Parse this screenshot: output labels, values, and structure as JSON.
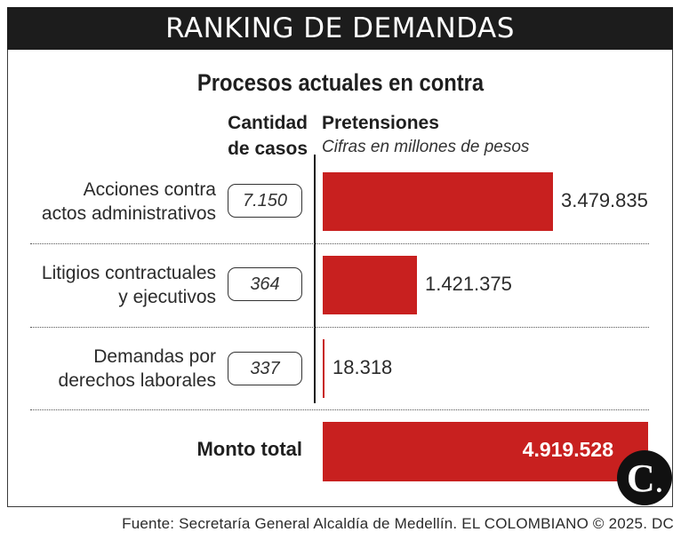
{
  "header": {
    "title": "RANKING DE DEMANDAS"
  },
  "subtitle": "Procesos actuales en contra",
  "columns": {
    "casos_line1": "Cantidad",
    "casos_line2": "de casos",
    "pretensiones": "Pretensiones",
    "pretensiones_sub": "Cifras en millones de pesos"
  },
  "rows": [
    {
      "label_line1": "Acciones contra",
      "label_line2": "actos administrativos",
      "casos": "7.150",
      "value_text": "3.479.835"
    },
    {
      "label_line1": "Litigios contractuales",
      "label_line2": "y ejecutivos",
      "casos": "364",
      "value_text": "1.421.375"
    },
    {
      "label_line1": "Demandas por",
      "label_line2": "derechos laborales",
      "casos": "337",
      "value_text": "18.318"
    }
  ],
  "total": {
    "label": "Monto total",
    "value_text": "4.919.528"
  },
  "logo": {
    "letter": "C",
    "dot": "."
  },
  "source": "Fuente: Secretaría General Alcaldía de Medellín. EL COLOMBIANO © 2025. DC",
  "colors": {
    "bar": "#c8201f",
    "header_bg": "#1c1c1c"
  },
  "chart_data": {
    "type": "bar",
    "orientation": "horizontal",
    "title": "Procesos actuales en contra",
    "xlabel": "Pretensiones (millones de pesos)",
    "categories": [
      "Acciones contra actos administrativos",
      "Litigios contractuales y ejecutivos",
      "Demandas por derechos laborales"
    ],
    "values": [
      3479835,
      1421375,
      18318
    ],
    "cases": [
      7150,
      364,
      337
    ],
    "total": 4919528,
    "xlim": [
      0,
      4919528
    ]
  }
}
